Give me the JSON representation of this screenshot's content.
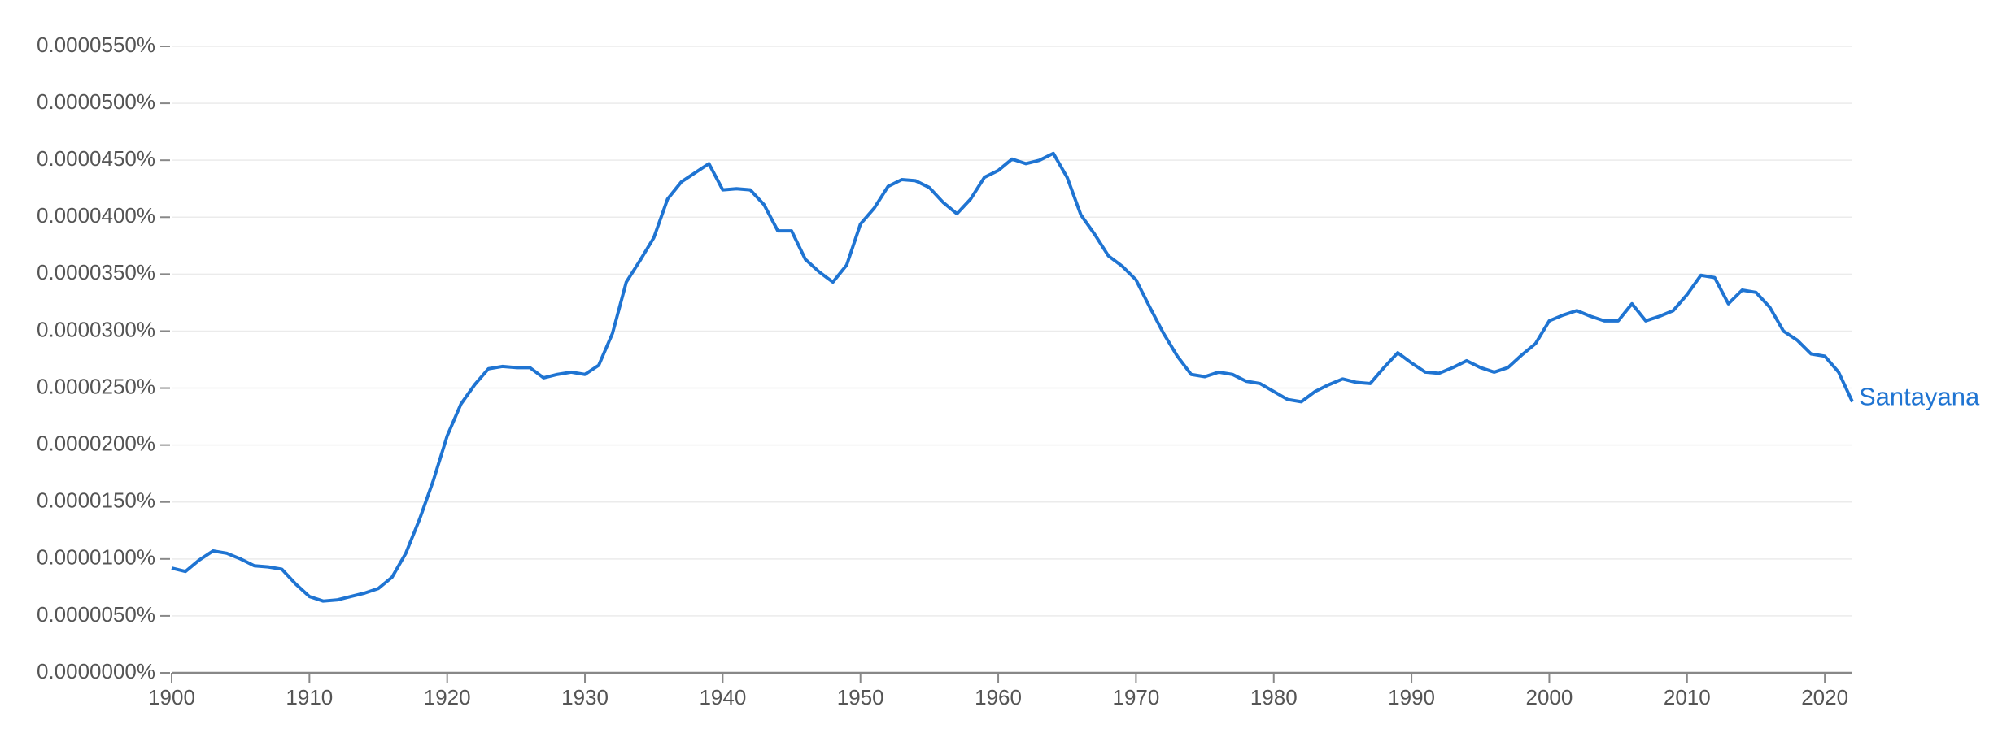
{
  "chart_data": {
    "type": "line",
    "x": [
      1900,
      1901,
      1902,
      1903,
      1904,
      1905,
      1906,
      1907,
      1908,
      1909,
      1910,
      1911,
      1912,
      1913,
      1914,
      1915,
      1916,
      1917,
      1918,
      1919,
      1920,
      1921,
      1922,
      1923,
      1924,
      1925,
      1926,
      1927,
      1928,
      1929,
      1930,
      1931,
      1932,
      1933,
      1934,
      1935,
      1936,
      1937,
      1938,
      1939,
      1940,
      1941,
      1942,
      1943,
      1944,
      1945,
      1946,
      1947,
      1948,
      1949,
      1950,
      1951,
      1952,
      1953,
      1954,
      1955,
      1956,
      1957,
      1958,
      1959,
      1960,
      1961,
      1962,
      1963,
      1964,
      1965,
      1966,
      1967,
      1968,
      1969,
      1970,
      1971,
      1972,
      1973,
      1974,
      1975,
      1976,
      1977,
      1978,
      1979,
      1980,
      1981,
      1982,
      1983,
      1984,
      1985,
      1986,
      1987,
      1988,
      1989,
      1990,
      1991,
      1992,
      1993,
      1994,
      1995,
      1996,
      1997,
      1998,
      1999,
      2000,
      2001,
      2002,
      2003,
      2004,
      2005,
      2006,
      2007,
      2008,
      2009,
      2010,
      2011,
      2012,
      2013,
      2014,
      2015,
      2016,
      2017,
      2018,
      2019,
      2020,
      2021,
      2022
    ],
    "series": [
      {
        "name": "Santayana",
        "color": "#1f74d2",
        "values": [
          9.2e-06,
          8.9e-06,
          9.9e-06,
          1.07e-05,
          1.05e-05,
          1e-05,
          9.4e-06,
          9.3e-06,
          9.1e-06,
          7.8e-06,
          6.7e-06,
          6.3e-06,
          6.4e-06,
          6.7e-06,
          7e-06,
          7.4e-06,
          8.4e-06,
          1.05e-05,
          1.35e-05,
          1.69e-05,
          2.08e-05,
          2.36e-05,
          2.53e-05,
          2.67e-05,
          2.69e-05,
          2.68e-05,
          2.68e-05,
          2.59e-05,
          2.62e-05,
          2.64e-05,
          2.62e-05,
          2.7e-05,
          2.98e-05,
          3.43e-05,
          3.62e-05,
          3.82e-05,
          4.16e-05,
          4.31e-05,
          4.39e-05,
          4.47e-05,
          4.24e-05,
          4.25e-05,
          4.24e-05,
          4.11e-05,
          3.88e-05,
          3.88e-05,
          3.63e-05,
          3.52e-05,
          3.43e-05,
          3.58e-05,
          3.94e-05,
          4.08e-05,
          4.27e-05,
          4.33e-05,
          4.32e-05,
          4.26e-05,
          4.13e-05,
          4.03e-05,
          4.16e-05,
          4.35e-05,
          4.41e-05,
          4.51e-05,
          4.47e-05,
          4.5e-05,
          4.56e-05,
          4.35e-05,
          4.02e-05,
          3.85e-05,
          3.66e-05,
          3.57e-05,
          3.45e-05,
          3.21e-05,
          2.98e-05,
          2.78e-05,
          2.62e-05,
          2.6e-05,
          2.64e-05,
          2.62e-05,
          2.56e-05,
          2.54e-05,
          2.47e-05,
          2.4e-05,
          2.38e-05,
          2.47e-05,
          2.53e-05,
          2.58e-05,
          2.55e-05,
          2.54e-05,
          2.68e-05,
          2.81e-05,
          2.72e-05,
          2.64e-05,
          2.63e-05,
          2.68e-05,
          2.74e-05,
          2.68e-05,
          2.64e-05,
          2.68e-05,
          2.79e-05,
          2.89e-05,
          3.09e-05,
          3.14e-05,
          3.18e-05,
          3.13e-05,
          3.09e-05,
          3.09e-05,
          3.24e-05,
          3.09e-05,
          3.13e-05,
          3.18e-05,
          3.32e-05,
          3.49e-05,
          3.47e-05,
          3.24e-05,
          3.36e-05,
          3.34e-05,
          3.21e-05,
          3e-05,
          2.92e-05,
          2.8e-05,
          2.78e-05,
          2.64e-05,
          2.38e-05
        ]
      }
    ],
    "xlim": [
      1900,
      2022
    ],
    "xticks": [
      1900,
      1910,
      1920,
      1930,
      1940,
      1950,
      1960,
      1970,
      1980,
      1990,
      2000,
      2010,
      2020
    ],
    "ylim": [
      0,
      5.5e-05
    ],
    "yticks": [
      {
        "value": 0,
        "label": "0.0000000%"
      },
      {
        "value": 5e-06,
        "label": "0.0000050%"
      },
      {
        "value": 1e-05,
        "label": "0.0000100%"
      },
      {
        "value": 1.5e-05,
        "label": "0.0000150%"
      },
      {
        "value": 2e-05,
        "label": "0.0000200%"
      },
      {
        "value": 2.5e-05,
        "label": "0.0000250%"
      },
      {
        "value": 3e-05,
        "label": "0.0000300%"
      },
      {
        "value": 3.5e-05,
        "label": "0.0000350%"
      },
      {
        "value": 4e-05,
        "label": "0.0000400%"
      },
      {
        "value": 4.5e-05,
        "label": "0.0000450%"
      },
      {
        "value": 5e-05,
        "label": "0.0000500%"
      },
      {
        "value": 5.5e-05,
        "label": "0.0000550%"
      }
    ],
    "grid": true
  }
}
